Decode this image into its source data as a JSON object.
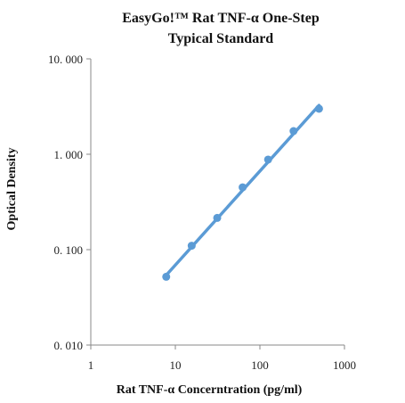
{
  "chart_data": {
    "type": "scatter",
    "title_lines": [
      "EasyGo!™ Rat TNF-α  One-Step",
      "Typical Standard"
    ],
    "xlabel": "Rat TNF-α Concerntration (pg/ml)",
    "ylabel": "Optical Density",
    "x_scale": "log",
    "y_scale": "log",
    "xlim": [
      1,
      1000
    ],
    "ylim": [
      0.01,
      10
    ],
    "x_ticks": [
      {
        "value": 1,
        "label": "1"
      },
      {
        "value": 10,
        "label": "10"
      },
      {
        "value": 100,
        "label": "100"
      },
      {
        "value": 1000,
        "label": "1000"
      }
    ],
    "y_ticks": [
      {
        "value": 0.01,
        "label": "0. 010"
      },
      {
        "value": 0.1,
        "label": "0. 100"
      },
      {
        "value": 1,
        "label": "1. 000"
      },
      {
        "value": 10,
        "label": "10. 000"
      }
    ],
    "grid": false,
    "legend": "none",
    "series": [
      {
        "x": [
          7.8,
          15.6,
          31.25,
          62.5,
          125,
          250,
          500
        ],
        "y": [
          0.052,
          0.11,
          0.215,
          0.45,
          0.88,
          1.75,
          3.0
        ],
        "marker_color": "#5b9bd5",
        "trendline": "power",
        "trendline_color": "#5b9bd5"
      }
    ],
    "trendline_endpoints": {
      "x": [
        7.8,
        500
      ],
      "y": [
        0.054,
        3.25
      ]
    }
  }
}
